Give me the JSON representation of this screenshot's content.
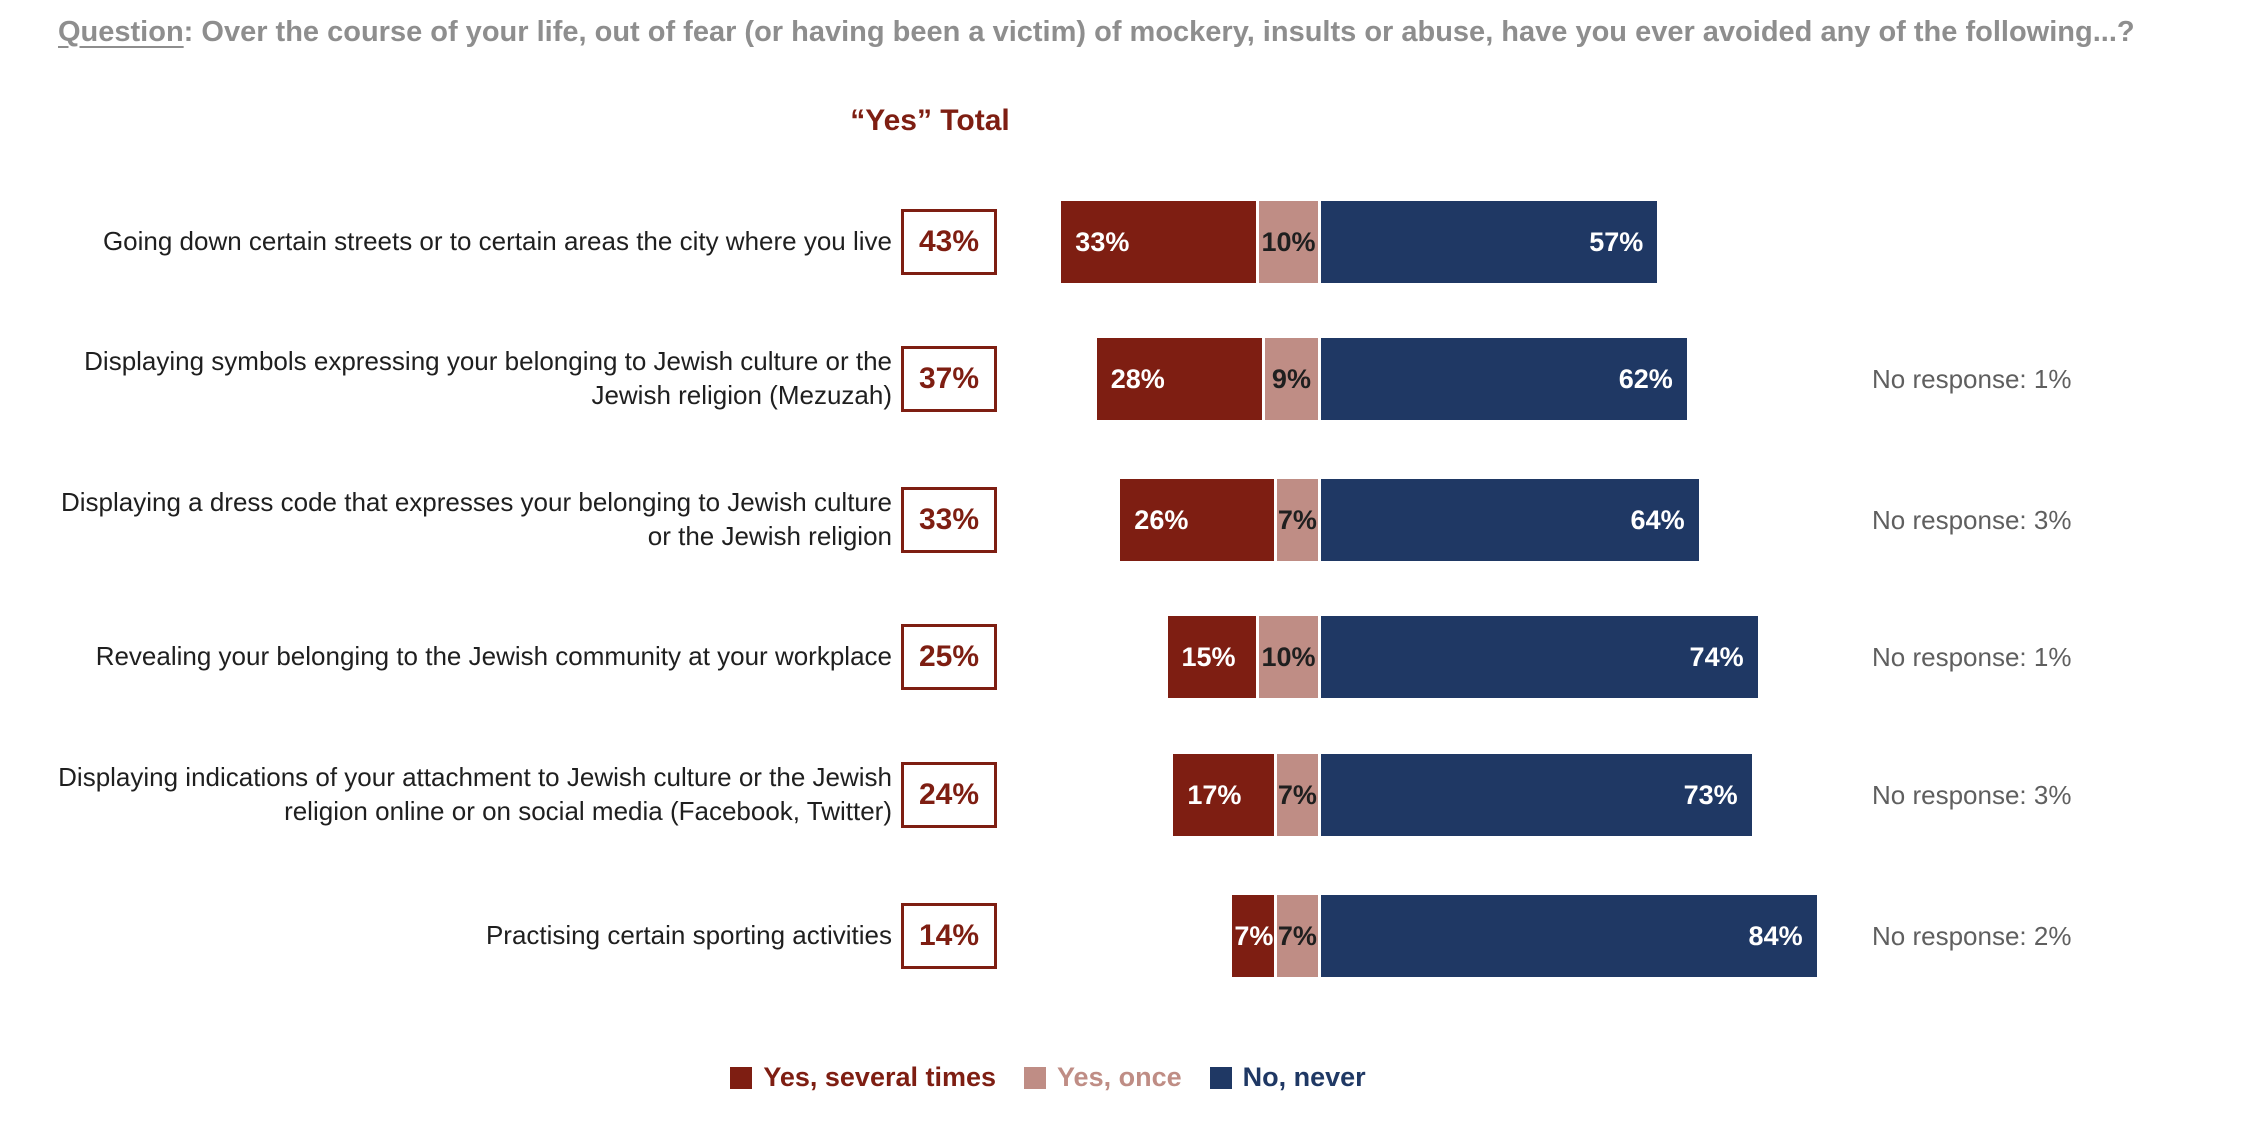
{
  "question": {
    "prefix": "Question",
    "rest": ": Over the course of your life, out of fear (or having been a victim) of mockery, insults or abuse, have you ever avoided any of the following...?"
  },
  "yes_total_header": "“Yes” Total",
  "colors": {
    "several": "#7e1e12",
    "once": "#bf8d85",
    "never": "#1f3864",
    "question_gray": "#8e8e8e",
    "no_response_gray": "#5f5f5f"
  },
  "legend": {
    "items": [
      {
        "label": "Yes, several times",
        "color": "#7e1e12"
      },
      {
        "label": "Yes, once",
        "color": "#bf8d85"
      },
      {
        "label": "No, never",
        "color": "#1f3864"
      }
    ]
  },
  "rows": [
    {
      "label": "Going down certain streets or to certain areas the city where you live",
      "yes_total": "43%",
      "several": 33,
      "once": 10,
      "never": 57,
      "several_label": "33%",
      "once_label": "10%",
      "never_label": "57%",
      "no_response": ""
    },
    {
      "label": "Displaying symbols expressing your belonging to Jewish culture or the Jewish religion (Mezuzah)",
      "yes_total": "37%",
      "several": 28,
      "once": 9,
      "never": 62,
      "several_label": "28%",
      "once_label": "9%",
      "never_label": "62%",
      "no_response": "No response: 1%"
    },
    {
      "label": "Displaying a dress code that expresses your belonging to Jewish culture or the Jewish religion",
      "yes_total": "33%",
      "several": 26,
      "once": 7,
      "never": 64,
      "several_label": "26%",
      "once_label": "7%",
      "never_label": "64%",
      "no_response": "No response: 3%"
    },
    {
      "label": "Revealing your belonging to the Jewish community at your workplace",
      "yes_total": "25%",
      "several": 15,
      "once": 10,
      "never": 74,
      "several_label": "15%",
      "once_label": "10%",
      "never_label": "74%",
      "no_response": "No response: 1%"
    },
    {
      "label": "Displaying indications of your attachment to Jewish culture or the Jewish religion online or on social media (Facebook, Twitter)",
      "yes_total": "24%",
      "several": 17,
      "once": 7,
      "never": 73,
      "several_label": "17%",
      "once_label": "7%",
      "never_label": "73%",
      "no_response": "No response: 3%"
    },
    {
      "label": "Practising certain sporting activities",
      "yes_total": "14%",
      "several": 7,
      "once": 7,
      "never": 84,
      "several_label": "7%",
      "once_label": "7%",
      "never_label": "84%",
      "no_response": "No response: 2%"
    }
  ],
  "chart_data": {
    "type": "bar",
    "subtype": "horizontal-diverging-stacked",
    "title": "Question: Over the course of your life, out of fear (or having been a victim) of mockery, insults or abuse, have you ever avoided any of the following...?",
    "header": "“Yes” Total",
    "categories": [
      "Going down certain streets or to certain areas the city where you live",
      "Displaying symbols expressing your belonging to Jewish culture or the Jewish religion (Mezuzah)",
      "Displaying a dress code that expresses your belonging to Jewish culture or the Jewish religion",
      "Revealing your belonging to the Jewish community at your workplace",
      "Displaying indications of your attachment to Jewish culture or the Jewish religion online or on social media (Facebook, Twitter)",
      "Practising certain sporting activities"
    ],
    "series": [
      {
        "name": "Yes, several times",
        "color": "#7e1e12",
        "values": [
          33,
          28,
          26,
          15,
          17,
          7
        ]
      },
      {
        "name": "Yes, once",
        "color": "#bf8d85",
        "values": [
          10,
          9,
          7,
          10,
          7,
          7
        ]
      },
      {
        "name": "No, never",
        "color": "#1f3864",
        "values": [
          57,
          62,
          64,
          74,
          73,
          84
        ]
      }
    ],
    "yes_totals": [
      43,
      37,
      33,
      25,
      24,
      14
    ],
    "no_response": [
      null,
      1,
      3,
      1,
      3,
      2
    ],
    "value_suffix": "%",
    "legend_position": "bottom",
    "grid": false,
    "axis_labels_shown": false
  }
}
